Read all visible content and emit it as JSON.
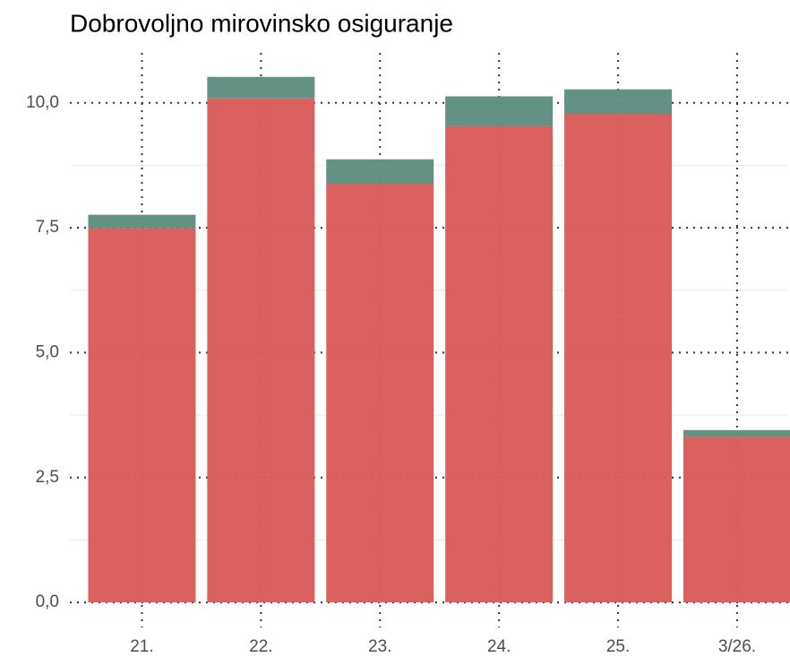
{
  "chart_data": {
    "type": "stacked_bar",
    "title": "Dobrovoljno mirovinsko osiguranje",
    "categories": [
      "21.",
      "22.",
      "23.",
      "24.",
      "25.",
      "3/26."
    ],
    "series": [
      {
        "color": "#d95c5a",
        "values": [
          7.49,
          10.09,
          8.38,
          9.53,
          9.78,
          3.32
        ]
      },
      {
        "color": "#5e8e80",
        "values": [
          0.27,
          0.43,
          0.49,
          0.6,
          0.49,
          0.13
        ]
      }
    ],
    "ylim": [
      -0.5,
      11
    ],
    "yticks": [
      {
        "value": 0,
        "label": "0,0"
      },
      {
        "value": 2.5,
        "label": "2,5"
      },
      {
        "value": 5,
        "label": "5,0"
      },
      {
        "value": 7.5,
        "label": "7,5"
      },
      {
        "value": 10,
        "label": "10,0"
      }
    ],
    "minor_yticks": [
      1.25,
      3.75,
      6.25,
      8.75
    ],
    "grid": true
  }
}
